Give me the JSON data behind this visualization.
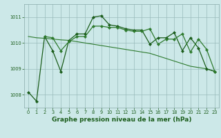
{
  "bg_color": "#cce8e8",
  "grid_color": "#99bbbb",
  "title": "Graphe pression niveau de la mer (hPa)",
  "xlim": [
    -0.5,
    23.5
  ],
  "ylim": [
    1007.5,
    1011.5
  ],
  "yticks": [
    1008,
    1009,
    1010,
    1011
  ],
  "xticks": [
    0,
    1,
    2,
    3,
    4,
    5,
    6,
    7,
    8,
    9,
    10,
    11,
    12,
    13,
    14,
    15,
    16,
    17,
    18,
    19,
    20,
    21,
    22,
    23
  ],
  "series": [
    {
      "x": [
        0,
        1,
        2,
        3,
        4,
        5,
        6,
        7,
        8,
        9,
        10,
        11,
        12,
        13,
        14,
        15,
        16,
        17,
        18,
        19,
        20,
        21,
        22,
        23
      ],
      "y": [
        1010.25,
        1010.2,
        1010.18,
        1010.15,
        1010.12,
        1010.1,
        1010.05,
        1010.0,
        1009.95,
        1009.9,
        1009.85,
        1009.8,
        1009.75,
        1009.7,
        1009.65,
        1009.6,
        1009.5,
        1009.4,
        1009.3,
        1009.2,
        1009.1,
        1009.05,
        1009.0,
        1008.9
      ],
      "color": "#2d7a2d",
      "linewidth": 0.8,
      "marker": null,
      "markersize": 0,
      "linestyle": "-"
    },
    {
      "x": [
        0,
        1,
        2,
        3,
        4,
        5,
        6,
        7,
        8,
        9,
        10,
        11,
        12,
        13,
        14,
        15,
        16,
        17,
        18,
        19,
        20,
        21,
        22,
        23
      ],
      "y": [
        1008.1,
        1007.75,
        1010.25,
        1009.7,
        1008.9,
        1010.1,
        1010.35,
        1010.35,
        1011.0,
        1011.05,
        1010.7,
        1010.65,
        1010.55,
        1010.5,
        1010.5,
        1009.95,
        1010.2,
        1010.2,
        1010.4,
        1009.7,
        1010.2,
        1009.8,
        1009.0,
        1008.9
      ],
      "color": "#1a5c1a",
      "linewidth": 0.9,
      "marker": "D",
      "markersize": 2.2,
      "linestyle": "-"
    },
    {
      "x": [
        2,
        3,
        4,
        5,
        6,
        7,
        8,
        9,
        10,
        11,
        12,
        13,
        14,
        15,
        16,
        17,
        18,
        19,
        20,
        21,
        22,
        23
      ],
      "y": [
        1010.25,
        1010.2,
        1009.7,
        1010.05,
        1010.25,
        1010.25,
        1010.65,
        1010.65,
        1010.6,
        1010.6,
        1010.5,
        1010.45,
        1010.45,
        1010.55,
        1009.95,
        1010.15,
        1010.15,
        1010.35,
        1009.65,
        1010.15,
        1009.75,
        1008.9
      ],
      "color": "#2d7a2d",
      "linewidth": 0.9,
      "marker": "D",
      "markersize": 2.2,
      "linestyle": "-"
    }
  ],
  "title_fontsize": 6.5,
  "tick_fontsize": 4.8,
  "title_color": "#1a5c1a",
  "tick_color": "#1a5c1a",
  "spine_color": "#88aaaa"
}
